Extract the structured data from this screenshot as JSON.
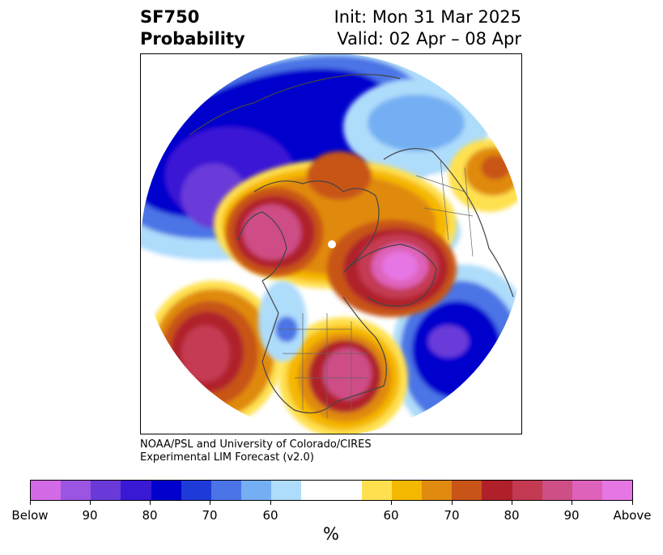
{
  "title": {
    "left_line1": "SF750",
    "left_line2": "Probability",
    "right_line1": "Init: Mon 31 Mar 2025",
    "right_line2": "Valid: 02 Apr – 08 Apr"
  },
  "credit": {
    "line1": "NOAA/PSL and University of Colorado/CIRES",
    "line2": "Experimental LIM Forecast (v2.0)"
  },
  "colorbar": {
    "unit_label": "%",
    "colors": [
      "#d36be6",
      "#9b55e2",
      "#6a3ad9",
      "#3a19d5",
      "#0000cd",
      "#1e3ad8",
      "#4b74e6",
      "#75aff3",
      "#aedcfb",
      "#ffffff",
      "#ffffff",
      "#ffe150",
      "#f5b800",
      "#e08a10",
      "#c85418",
      "#b0202a",
      "#c43a52",
      "#ce4e86",
      "#de62b9",
      "#e676e4"
    ],
    "tick_labels": [
      "Below",
      "90",
      "80",
      "70",
      "60",
      "60",
      "70",
      "80",
      "90",
      "Above"
    ]
  },
  "legend_categories": [
    "Below",
    "Above"
  ]
}
